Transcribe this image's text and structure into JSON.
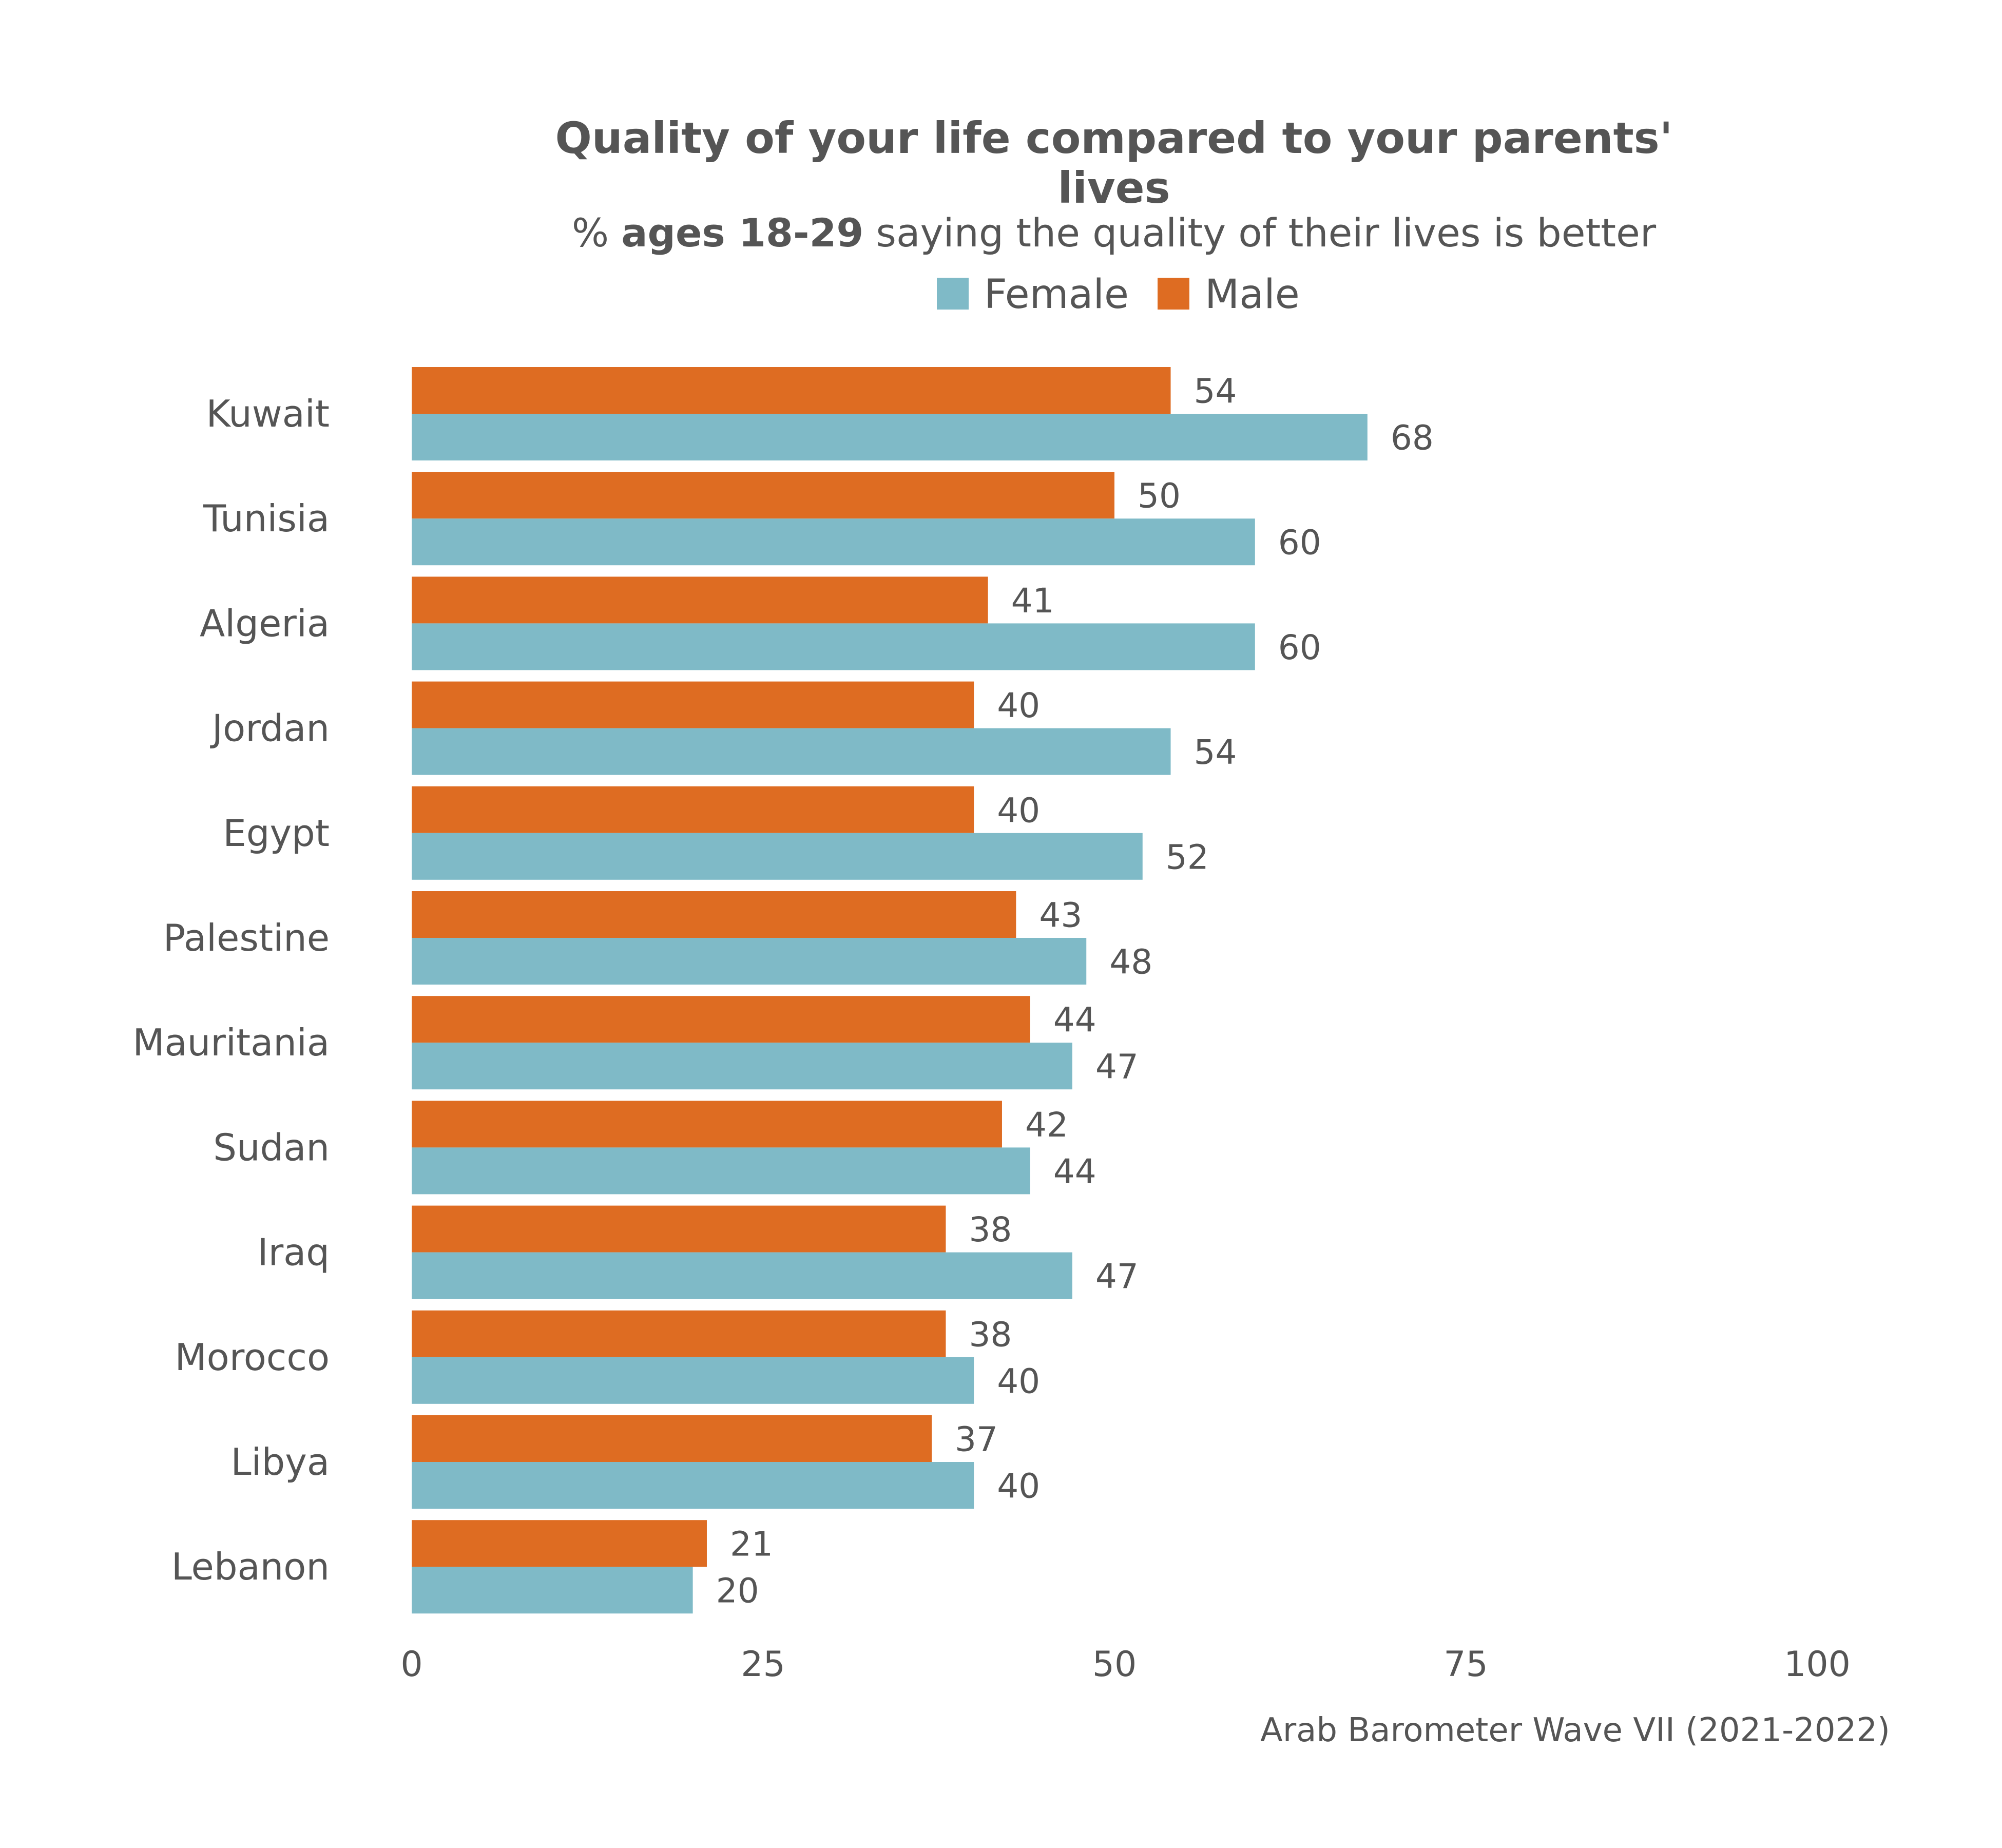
{
  "chart_data": {
    "type": "bar",
    "orientation": "horizontal",
    "title_lines": [
      "Quality of your life compared to your parents'",
      "lives"
    ],
    "subtitle": {
      "prefix": "% ",
      "bold": "ages 18-29",
      "suffix": " saying the quality of their lives is better"
    },
    "caption": "Arab Barometer Wave VII (2021-2022)",
    "categories": [
      "Kuwait",
      "Tunisia",
      "Algeria",
      "Jordan",
      "Egypt",
      "Palestine",
      "Mauritania",
      "Sudan",
      "Iraq",
      "Morocco",
      "Libya",
      "Lebanon"
    ],
    "series": [
      {
        "name": "Male",
        "color": "#de6c22",
        "values": [
          54,
          50,
          41,
          40,
          40,
          43,
          44,
          42,
          38,
          38,
          37,
          21
        ]
      },
      {
        "name": "Female",
        "color": "#7fbac7",
        "values": [
          68,
          60,
          60,
          54,
          52,
          48,
          47,
          44,
          47,
          40,
          40,
          20
        ]
      }
    ],
    "legend": {
      "position": "top",
      "items": [
        {
          "name": "Female",
          "color": "#7fbac7"
        },
        {
          "name": "Male",
          "color": "#de6c22"
        }
      ]
    },
    "xlim": [
      0,
      100
    ],
    "xticks": [
      "0",
      "25",
      "50",
      "75",
      "100"
    ],
    "grid": false
  }
}
